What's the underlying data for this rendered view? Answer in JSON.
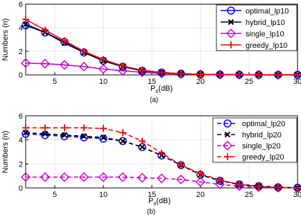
{
  "chart_data": [
    {
      "type": "line",
      "caption": "(a)",
      "xlabel": "P",
      "xlabel_sub": "s",
      "xlabel_unit": "(dB)",
      "ylabel": "Numbers (n)",
      "xlim": [
        2,
        30
      ],
      "ylim": [
        0,
        6
      ],
      "xticks": [
        5,
        10,
        15,
        20,
        25,
        30
      ],
      "yticks": [
        0,
        2,
        4,
        6
      ],
      "grid": true,
      "legend_position": "top-right",
      "x": [
        2,
        4,
        6,
        8,
        10,
        12,
        14,
        16,
        18,
        20,
        22,
        24,
        26,
        28,
        30
      ],
      "series": [
        {
          "name": "optimal_lp10",
          "color": "#0000ff",
          "dash": "solid",
          "marker": "circle",
          "values": [
            4.2,
            3.6,
            2.8,
            1.9,
            1.2,
            0.7,
            0.35,
            0.2,
            0.1,
            0.05,
            0.03,
            0.02,
            0.01,
            0.01,
            0.01
          ]
        },
        {
          "name": "hybrid_lp10",
          "color": "#000000",
          "dash": "solid",
          "marker": "x",
          "values": [
            4.3,
            3.6,
            2.7,
            1.9,
            1.2,
            0.7,
            0.35,
            0.2,
            0.1,
            0.05,
            0.03,
            0.02,
            0.01,
            0.01,
            0.01
          ]
        },
        {
          "name": "single_lp10",
          "color": "#cc00cc",
          "dash": "solid",
          "marker": "diamond",
          "values": [
            1.0,
            0.95,
            0.85,
            0.7,
            0.5,
            0.35,
            0.22,
            0.12,
            0.07,
            0.04,
            0.02,
            0.01,
            0.01,
            0.0,
            0.0
          ]
        },
        {
          "name": "greedy_lp10",
          "color": "#ff0000",
          "dash": "solid",
          "marker": "plus",
          "values": [
            4.7,
            3.8,
            2.9,
            2.0,
            1.3,
            0.75,
            0.4,
            0.2,
            0.1,
            0.05,
            0.03,
            0.02,
            0.01,
            0.01,
            0.01
          ]
        }
      ]
    },
    {
      "type": "line",
      "caption": "(b)",
      "xlabel": "P",
      "xlabel_sub": "s",
      "xlabel_unit": "(dB)",
      "ylabel": "Numbers (n)",
      "xlim": [
        2,
        30
      ],
      "ylim": [
        0,
        6
      ],
      "xticks": [
        5,
        10,
        15,
        20,
        25,
        30
      ],
      "yticks": [
        0,
        2,
        4,
        6
      ],
      "grid": true,
      "legend_position": "top-right",
      "x": [
        2,
        4,
        6,
        8,
        10,
        12,
        14,
        16,
        18,
        20,
        22,
        24,
        26,
        28,
        30
      ],
      "series": [
        {
          "name": "optimal_lp20",
          "color": "#0000ff",
          "dash": "dashed",
          "marker": "circle",
          "values": [
            4.5,
            4.4,
            4.3,
            4.2,
            4.1,
            3.9,
            3.4,
            2.7,
            1.9,
            1.1,
            0.6,
            0.3,
            0.15,
            0.05,
            0.02
          ]
        },
        {
          "name": "hybrid_lp20",
          "color": "#000000",
          "dash": "dashed",
          "marker": "x",
          "values": [
            4.6,
            4.5,
            4.4,
            4.3,
            4.2,
            3.9,
            3.4,
            2.7,
            1.9,
            1.1,
            0.6,
            0.3,
            0.15,
            0.05,
            0.02
          ]
        },
        {
          "name": "single_lp20",
          "color": "#cc00cc",
          "dash": "dashed",
          "marker": "diamond",
          "values": [
            0.9,
            0.9,
            0.9,
            0.9,
            0.9,
            0.9,
            0.85,
            0.8,
            0.7,
            0.5,
            0.3,
            0.15,
            0.06,
            0.02,
            0.01
          ]
        },
        {
          "name": "greedy_lp20",
          "color": "#ff0000",
          "dash": "dashed",
          "marker": "plus",
          "values": [
            5.0,
            5.0,
            5.0,
            5.0,
            4.95,
            4.6,
            3.9,
            2.9,
            1.9,
            1.2,
            0.65,
            0.3,
            0.12,
            0.04,
            0.01
          ]
        }
      ]
    }
  ]
}
